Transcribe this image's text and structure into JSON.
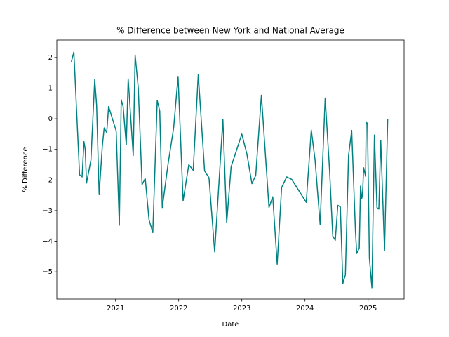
{
  "chart_data": {
    "type": "line",
    "title": "% Difference between New York and National Average",
    "x_label": "Date",
    "y_label": "% Difference",
    "color": "#008080",
    "x": [
      2020.3,
      2020.34,
      2020.43,
      2020.47,
      2020.5,
      2020.52,
      2020.54,
      2020.61,
      2020.67,
      2020.7,
      2020.74,
      2020.79,
      2020.82,
      2020.86,
      2020.89,
      2021.01,
      2021.06,
      2021.09,
      2021.12,
      2021.17,
      2021.2,
      2021.28,
      2021.31,
      2021.36,
      2021.42,
      2021.47,
      2021.53,
      2021.59,
      2021.66,
      2021.7,
      2021.74,
      2021.83,
      2021.92,
      2021.99,
      2022.07,
      2022.16,
      2022.23,
      2022.31,
      2022.41,
      2022.48,
      2022.57,
      2022.7,
      2022.76,
      2022.83,
      2023.0,
      2023.08,
      2023.16,
      2023.22,
      2023.31,
      2023.43,
      2023.49,
      2023.56,
      2023.63,
      2023.71,
      2023.79,
      2024.02,
      2024.1,
      2024.16,
      2024.24,
      2024.32,
      2024.39,
      2024.44,
      2024.48,
      2024.52,
      2024.56,
      2024.6,
      2024.64,
      2024.69,
      2024.74,
      2024.8,
      2024.82,
      2024.86,
      2024.88,
      2024.9,
      2024.91,
      2024.93,
      2024.96,
      2024.97,
      2024.99,
      2025.02,
      2025.06,
      2025.1,
      2025.14,
      2025.17,
      2025.2,
      2025.26,
      2025.31
    ],
    "values": [
      1.86,
      2.18,
      -1.83,
      -1.9,
      -0.75,
      -1.0,
      -2.1,
      -1.35,
      1.28,
      0.45,
      -2.48,
      -0.9,
      -0.3,
      -0.45,
      0.4,
      -0.4,
      -3.48,
      0.62,
      0.4,
      -0.85,
      1.3,
      -1.2,
      2.08,
      1.0,
      -2.15,
      -1.95,
      -3.3,
      -3.72,
      0.6,
      0.25,
      -2.9,
      -1.5,
      -0.3,
      1.38,
      -2.68,
      -1.5,
      -1.68,
      1.45,
      -1.7,
      -1.93,
      -4.35,
      -0.02,
      -3.4,
      -1.57,
      -0.5,
      -1.15,
      -2.12,
      -1.85,
      0.77,
      -2.9,
      -2.55,
      -4.75,
      -2.25,
      -1.9,
      -1.98,
      -2.73,
      -0.37,
      -1.35,
      -3.45,
      0.68,
      -1.7,
      -3.83,
      -3.97,
      -2.83,
      -2.88,
      -5.38,
      -5.1,
      -1.2,
      -0.38,
      -3.7,
      -4.4,
      -4.22,
      -2.2,
      -2.6,
      -2.5,
      -1.6,
      -1.88,
      -0.12,
      -0.15,
      -4.55,
      -5.52,
      -0.53,
      -2.9,
      -2.95,
      -0.7,
      -4.3,
      -0.02
    ],
    "xlim": [
      2020.07,
      2025.57
    ],
    "xticks": [
      2021,
      2022,
      2023,
      2024,
      2025
    ],
    "ylim": [
      -5.89,
      2.57
    ],
    "yticks": [
      {
        "value": -5,
        "label": "−5"
      },
      {
        "value": -4,
        "label": "−4"
      },
      {
        "value": -3,
        "label": "−3"
      },
      {
        "value": -2,
        "label": "−2"
      },
      {
        "value": -1,
        "label": "−1"
      },
      0,
      1,
      2
    ],
    "grid": false
  }
}
